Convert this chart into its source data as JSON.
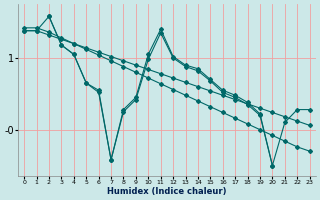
{
  "xlabel": "Humidex (Indice chaleur)",
  "ylabel": "",
  "bg_color": "#cce8e8",
  "grid_color": "#f0a0a0",
  "line_color": "#006868",
  "xlim": [
    -0.5,
    23.5
  ],
  "ylim": [
    -0.65,
    1.75
  ],
  "ytick_vals": [
    1.0,
    0.0
  ],
  "ytick_labels": [
    "1",
    "-0"
  ],
  "xtick_vals": [
    0,
    1,
    2,
    3,
    4,
    5,
    6,
    7,
    8,
    9,
    10,
    11,
    12,
    13,
    14,
    15,
    16,
    17,
    18,
    19,
    20,
    21,
    22,
    23
  ],
  "series": [
    {
      "x": [
        0,
        1,
        2,
        3,
        4,
        5,
        6,
        7,
        8,
        9,
        10,
        11,
        12,
        13,
        14,
        15,
        16,
        17,
        18,
        19,
        20,
        21,
        22,
        23
      ],
      "y": [
        1.38,
        1.38,
        1.32,
        1.26,
        1.2,
        1.14,
        1.08,
        1.02,
        0.96,
        0.9,
        0.84,
        0.78,
        0.72,
        0.66,
        0.6,
        0.54,
        0.48,
        0.42,
        0.36,
        0.3,
        0.24,
        0.18,
        0.12,
        0.06
      ]
    },
    {
      "x": [
        0,
        1,
        2,
        3,
        4,
        5,
        6,
        7,
        8,
        9,
        10,
        11,
        12,
        13,
        14,
        15,
        16,
        17,
        18,
        19,
        20,
        21,
        22,
        23
      ],
      "y": [
        1.42,
        1.42,
        1.36,
        1.28,
        1.2,
        1.12,
        1.04,
        0.96,
        0.88,
        0.8,
        0.72,
        0.64,
        0.56,
        0.48,
        0.4,
        0.32,
        0.24,
        0.16,
        0.08,
        0.0,
        -0.08,
        -0.16,
        -0.24,
        -0.3
      ]
    },
    {
      "x": [
        2,
        3,
        4,
        5,
        6,
        7,
        8,
        9,
        10,
        11,
        12,
        13,
        14,
        15,
        16,
        17,
        18,
        19,
        20
      ],
      "y": [
        1.58,
        1.18,
        1.05,
        0.65,
        0.55,
        -0.42,
        0.28,
        0.45,
        1.05,
        1.4,
        1.02,
        0.9,
        0.85,
        0.7,
        0.55,
        0.48,
        0.38,
        0.22,
        -0.5
      ]
    },
    {
      "x": [
        0,
        1,
        2,
        3,
        4,
        5,
        6,
        7,
        8,
        9,
        10,
        11,
        12,
        13,
        14,
        15,
        16,
        17,
        18,
        19,
        20,
        21,
        22,
        23
      ],
      "y": [
        1.38,
        1.38,
        1.58,
        1.18,
        1.05,
        0.65,
        0.52,
        -0.42,
        0.25,
        0.42,
        0.98,
        1.35,
        1.0,
        0.88,
        0.82,
        0.68,
        0.52,
        0.45,
        0.35,
        0.2,
        -0.5,
        0.1,
        0.28,
        0.28
      ]
    }
  ]
}
